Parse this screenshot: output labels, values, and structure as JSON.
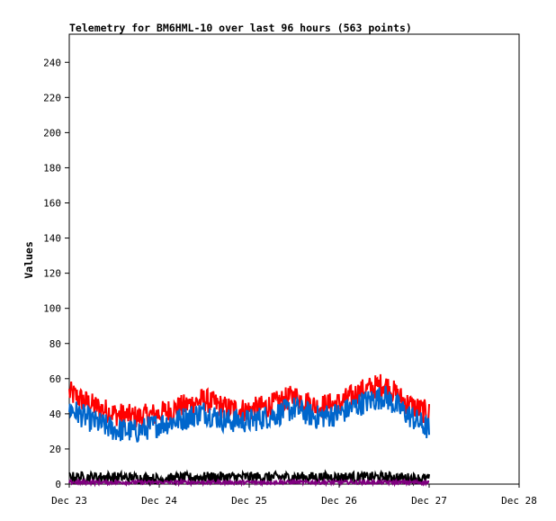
{
  "chart_data": {
    "type": "line",
    "title": "Telemetry for BM6HML-10 over last 96 hours (563 points)",
    "xlabel": "",
    "ylabel": "Values",
    "ylim": [
      0,
      256
    ],
    "yticks": [
      0,
      20,
      40,
      60,
      80,
      100,
      120,
      140,
      160,
      180,
      200,
      220,
      240
    ],
    "xlim": [
      "2023-12-23",
      "2023-12-28"
    ],
    "xticks": [
      "2023-12-23",
      "2023-12-24",
      "2023-12-25",
      "2023-12-26",
      "2023-12-27",
      "2023-12-28"
    ],
    "xtick_labels": [
      "Dec 23",
      "Dec 24",
      "Dec 25",
      "Dec 26",
      "Dec 27",
      "Dec 28"
    ],
    "grid": false,
    "legend": "none",
    "series": [
      {
        "color": "#ff0000",
        "x": [
          "2023-12-23T00:00",
          "2023-12-23T06:00",
          "2023-12-23T12:00",
          "2023-12-23T18:00",
          "2023-12-24T00:00",
          "2023-12-24T06:00",
          "2023-12-24T12:00",
          "2023-12-24T18:00",
          "2023-12-25T00:00",
          "2023-12-25T06:00",
          "2023-12-25T12:00",
          "2023-12-25T18:00",
          "2023-12-26T00:00",
          "2023-12-26T06:00",
          "2023-12-26T12:00",
          "2023-12-26T18:00",
          "2023-12-27T00:00"
        ],
        "values": [
          52,
          45,
          40,
          38,
          40,
          44,
          48,
          43,
          42,
          45,
          50,
          44,
          46,
          53,
          57,
          46,
          40
        ]
      },
      {
        "color": "#0066cc",
        "x": [
          "2023-12-23T00:00",
          "2023-12-23T06:00",
          "2023-12-23T12:00",
          "2023-12-23T18:00",
          "2023-12-24T00:00",
          "2023-12-24T06:00",
          "2023-12-24T12:00",
          "2023-12-24T18:00",
          "2023-12-25T00:00",
          "2023-12-25T06:00",
          "2023-12-25T12:00",
          "2023-12-25T18:00",
          "2023-12-26T00:00",
          "2023-12-26T06:00",
          "2023-12-26T12:00",
          "2023-12-26T18:00",
          "2023-12-27T00:00"
        ],
        "values": [
          43,
          36,
          31,
          30,
          34,
          37,
          41,
          36,
          36,
          39,
          43,
          38,
          40,
          46,
          50,
          40,
          31
        ]
      },
      {
        "color": "#000000",
        "x": [
          "2023-12-23T00:00",
          "2023-12-23T12:00",
          "2023-12-24T00:00",
          "2023-12-24T12:00",
          "2023-12-25T00:00",
          "2023-12-25T12:00",
          "2023-12-26T00:00",
          "2023-12-26T12:00",
          "2023-12-27T00:00"
        ],
        "values": [
          4,
          4,
          3,
          4,
          4,
          4,
          4,
          4,
          3
        ]
      },
      {
        "color": "#800080",
        "x": [
          "2023-12-23T00:00",
          "2023-12-24T00:00",
          "2023-12-25T00:00",
          "2023-12-26T00:00",
          "2023-12-27T00:00"
        ],
        "values": [
          1,
          1,
          1,
          1,
          1
        ]
      }
    ]
  }
}
